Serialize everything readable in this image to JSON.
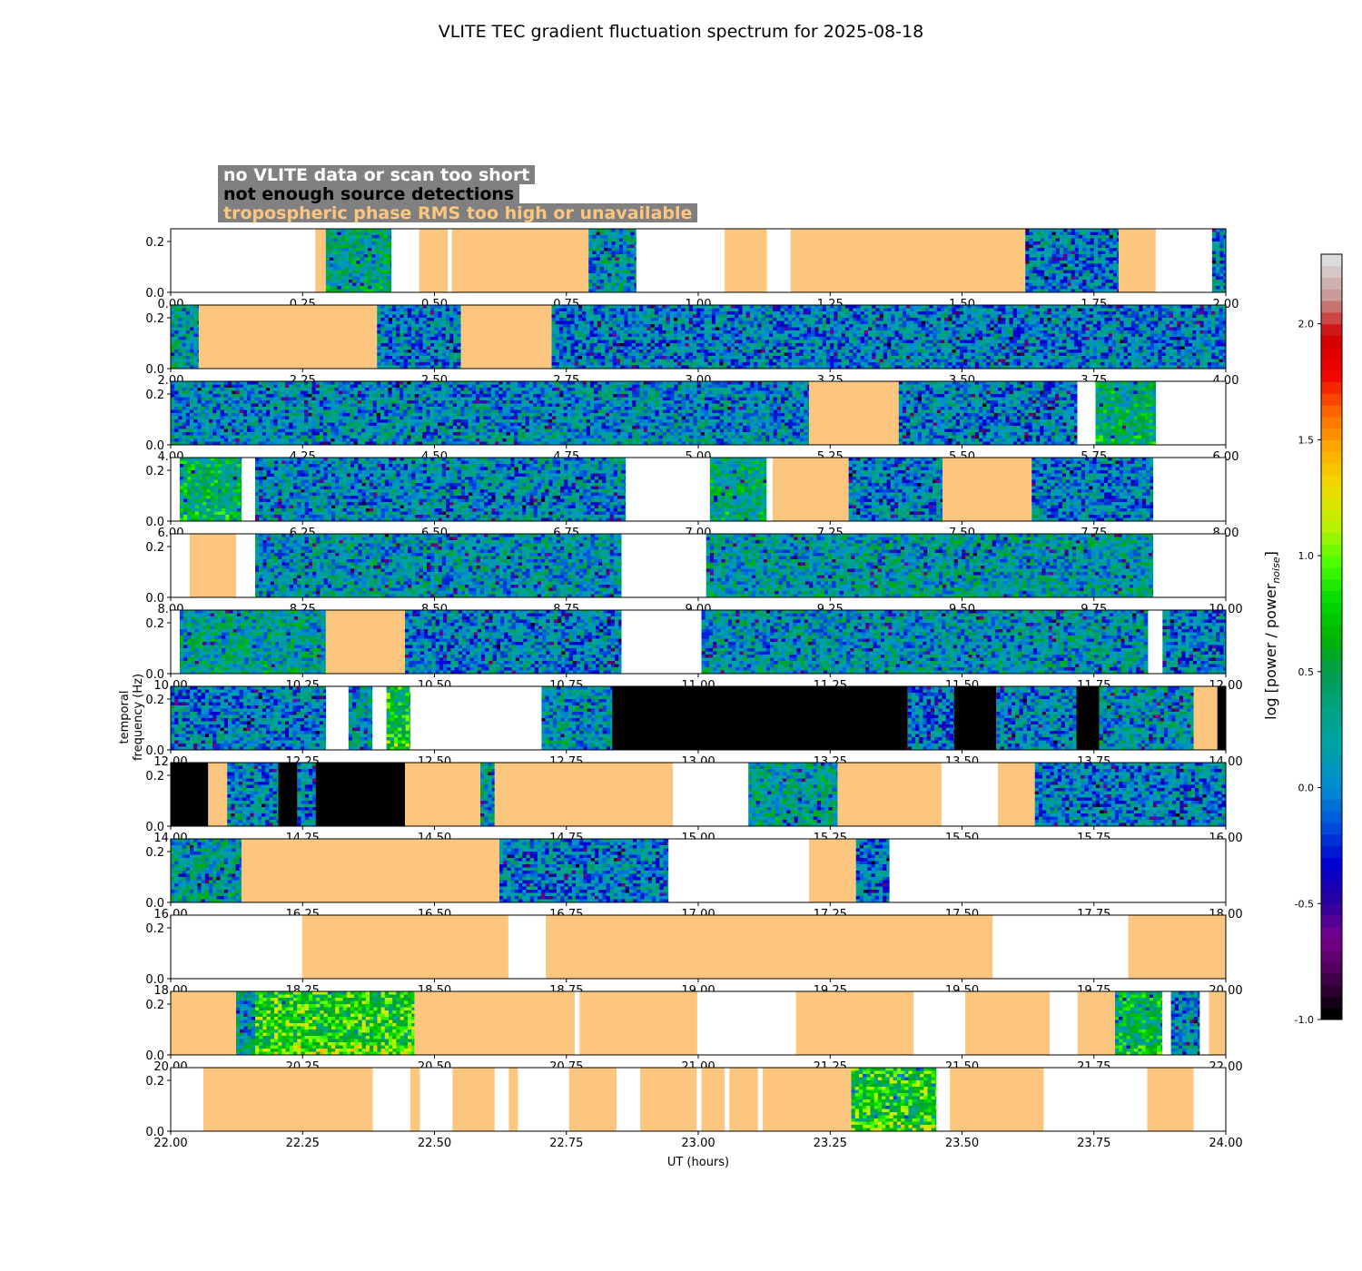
{
  "figure": {
    "title": "VLITE TEC gradient fluctuation spectrum for 2025-08-18"
  },
  "legend": [
    {
      "label": "no VLITE data or scan too short",
      "text_color": "#ffffff",
      "fill": "#ffffff"
    },
    {
      "label": "not enough source detections",
      "text_color": "#000000",
      "fill": "#000000"
    },
    {
      "label": "tropospheric phase RMS too high or unavailable",
      "text_color": "#fdc67f",
      "fill": "#fdc67f"
    }
  ],
  "colorbar": {
    "label": "log [power / power",
    "label_subscript": "noise",
    "label_close": "]",
    "range": [
      -1.0,
      2.3
    ],
    "ticks": [
      "-1.0",
      "-0.5",
      "0.0",
      "0.5",
      "1.0",
      "1.5",
      "2.0"
    ],
    "tick_values": [
      -1.0,
      -0.5,
      0.0,
      0.5,
      1.0,
      1.5,
      2.0
    ],
    "colormap": "nipy_spectral-like"
  },
  "axes": {
    "xlabel": "UT (hours)",
    "ylabel": "temporal frequency (Hz)",
    "y_ticks": [
      "0.0",
      "0.2"
    ],
    "ylim": [
      0.0,
      0.25
    ]
  },
  "chart_data": {
    "type": "heatmap",
    "description_units": "time in UT hours; frequency in Hz; color = log power ratio",
    "panels": [
      {
        "xlim": [
          0,
          2
        ],
        "x_ticks": [
          "0.00",
          "0.25",
          "0.50",
          "0.75",
          "1.00",
          "1.25",
          "1.50",
          "1.75",
          "2.00"
        ],
        "segments": [
          {
            "start": 0.274,
            "end": 0.294,
            "state": "trop"
          },
          {
            "start": 0.294,
            "end": 0.418,
            "state": "data",
            "tone": 0.35
          },
          {
            "start": 0.471,
            "end": 0.525,
            "state": "trop"
          },
          {
            "start": 0.533,
            "end": 0.792,
            "state": "trop"
          },
          {
            "start": 0.792,
            "end": 0.882,
            "state": "data",
            "tone": 0.2
          },
          {
            "start": 1.05,
            "end": 1.13,
            "state": "trop"
          },
          {
            "start": 1.175,
            "end": 1.62,
            "state": "trop"
          },
          {
            "start": 1.62,
            "end": 1.797,
            "state": "data",
            "tone": 0.1
          },
          {
            "start": 1.797,
            "end": 1.867,
            "state": "trop"
          },
          {
            "start": 1.974,
            "end": 2.0,
            "state": "data",
            "tone": 0.1
          }
        ]
      },
      {
        "xlim": [
          2,
          4
        ],
        "x_ticks": [
          "2.00",
          "2.25",
          "2.50",
          "2.75",
          "3.00",
          "3.25",
          "3.50",
          "3.75",
          "4.00"
        ],
        "segments": [
          {
            "start": 2.0,
            "end": 2.053,
            "state": "data",
            "tone": 0.2
          },
          {
            "start": 2.053,
            "end": 2.391,
            "state": "trop"
          },
          {
            "start": 2.391,
            "end": 2.55,
            "state": "data",
            "tone": 0.1
          },
          {
            "start": 2.55,
            "end": 2.722,
            "state": "trop"
          },
          {
            "start": 2.722,
            "end": 4.0,
            "state": "data",
            "tone": 0.1
          }
        ]
      },
      {
        "xlim": [
          4,
          6
        ],
        "x_ticks": [
          "4.00",
          "4.25",
          "4.50",
          "4.75",
          "5.00",
          "5.25",
          "5.50",
          "5.75",
          "6.00"
        ],
        "segments": [
          {
            "start": 4.0,
            "end": 5.21,
            "state": "data",
            "tone": 0.15
          },
          {
            "start": 5.21,
            "end": 5.38,
            "state": "trop"
          },
          {
            "start": 5.38,
            "end": 5.718,
            "state": "data",
            "tone": 0.1
          },
          {
            "start": 5.753,
            "end": 5.867,
            "state": "data",
            "tone": 0.45
          }
        ]
      },
      {
        "xlim": [
          6,
          8
        ],
        "x_ticks": [
          "6.00",
          "6.25",
          "6.50",
          "6.75",
          "7.00",
          "7.25",
          "7.50",
          "7.75",
          "8.00"
        ],
        "segments": [
          {
            "start": 6.017,
            "end": 6.134,
            "state": "data",
            "tone": 0.5
          },
          {
            "start": 6.16,
            "end": 6.862,
            "state": "data",
            "tone": 0.15
          },
          {
            "start": 7.022,
            "end": 7.129,
            "state": "data",
            "tone": 0.4
          },
          {
            "start": 7.141,
            "end": 7.285,
            "state": "trop"
          },
          {
            "start": 7.285,
            "end": 7.463,
            "state": "data",
            "tone": 0.1
          },
          {
            "start": 7.463,
            "end": 7.632,
            "state": "trop"
          },
          {
            "start": 7.632,
            "end": 7.862,
            "state": "data",
            "tone": 0.1
          }
        ]
      },
      {
        "xlim": [
          8,
          10
        ],
        "x_ticks": [
          "8.00",
          "8.25",
          "8.50",
          "8.75",
          "9.00",
          "9.25",
          "9.50",
          "9.75",
          "10.00"
        ],
        "segments": [
          {
            "start": 8.036,
            "end": 8.124,
            "state": "trop"
          },
          {
            "start": 8.16,
            "end": 8.854,
            "state": "data",
            "tone": 0.2
          },
          {
            "start": 9.015,
            "end": 9.862,
            "state": "data",
            "tone": 0.25
          }
        ]
      },
      {
        "xlim": [
          10,
          12
        ],
        "x_ticks": [
          "10.00",
          "10.25",
          "10.50",
          "10.75",
          "11.00",
          "11.25",
          "11.50",
          "11.75",
          "12.00"
        ],
        "segments": [
          {
            "start": 10.017,
            "end": 10.294,
            "state": "data",
            "tone": 0.3
          },
          {
            "start": 10.294,
            "end": 10.444,
            "state": "trop"
          },
          {
            "start": 10.444,
            "end": 10.854,
            "state": "data",
            "tone": 0.1
          },
          {
            "start": 11.006,
            "end": 11.852,
            "state": "data",
            "tone": 0.2
          },
          {
            "start": 11.88,
            "end": 12.0,
            "state": "data",
            "tone": 0.1
          }
        ]
      },
      {
        "xlim": [
          12,
          14
        ],
        "x_ticks": [
          "12.00",
          "12.25",
          "12.50",
          "12.75",
          "13.00",
          "13.25",
          "13.50",
          "13.75",
          "14.00"
        ],
        "segments": [
          {
            "start": 12.0,
            "end": 12.294,
            "state": "data",
            "tone": 0.1
          },
          {
            "start": 12.337,
            "end": 12.382,
            "state": "data",
            "tone": 0.2
          },
          {
            "start": 12.409,
            "end": 12.454,
            "state": "data",
            "tone": 0.7
          },
          {
            "start": 12.703,
            "end": 12.837,
            "state": "data",
            "tone": 0.2
          },
          {
            "start": 12.837,
            "end": 13.397,
            "state": "detect"
          },
          {
            "start": 13.397,
            "end": 13.485,
            "state": "data",
            "tone": 0.05
          },
          {
            "start": 13.485,
            "end": 13.565,
            "state": "detect"
          },
          {
            "start": 13.565,
            "end": 13.717,
            "state": "data",
            "tone": 0.1
          },
          {
            "start": 13.717,
            "end": 13.76,
            "state": "detect"
          },
          {
            "start": 13.76,
            "end": 13.939,
            "state": "data",
            "tone": 0.2
          },
          {
            "start": 13.939,
            "end": 13.984,
            "state": "trop"
          },
          {
            "start": 13.984,
            "end": 14.0,
            "state": "detect"
          }
        ]
      },
      {
        "xlim": [
          14,
          16
        ],
        "x_ticks": [
          "14.00",
          "14.25",
          "14.50",
          "14.75",
          "15.00",
          "15.25",
          "15.50",
          "15.75",
          "16.00"
        ],
        "segments": [
          {
            "start": 14.0,
            "end": 14.071,
            "state": "detect"
          },
          {
            "start": 14.071,
            "end": 14.107,
            "state": "trop"
          },
          {
            "start": 14.107,
            "end": 14.204,
            "state": "data",
            "tone": 0.15
          },
          {
            "start": 14.204,
            "end": 14.24,
            "state": "detect"
          },
          {
            "start": 14.24,
            "end": 14.275,
            "state": "data",
            "tone": 0.1
          },
          {
            "start": 14.275,
            "end": 14.444,
            "state": "detect"
          },
          {
            "start": 14.444,
            "end": 14.587,
            "state": "trop"
          },
          {
            "start": 14.587,
            "end": 14.614,
            "state": "data",
            "tone": 0.2
          },
          {
            "start": 14.614,
            "end": 14.952,
            "state": "trop"
          },
          {
            "start": 15.095,
            "end": 15.264,
            "state": "data",
            "tone": 0.3
          },
          {
            "start": 15.264,
            "end": 15.461,
            "state": "trop"
          },
          {
            "start": 15.568,
            "end": 15.638,
            "state": "trop"
          },
          {
            "start": 15.638,
            "end": 16.0,
            "state": "data",
            "tone": 0.1
          }
        ]
      },
      {
        "xlim": [
          16,
          18
        ],
        "x_ticks": [
          "16.00",
          "16.25",
          "16.50",
          "16.75",
          "17.00",
          "17.25",
          "17.50",
          "17.75",
          "18.00"
        ],
        "segments": [
          {
            "start": 16.0,
            "end": 16.134,
            "state": "data",
            "tone": 0.25
          },
          {
            "start": 16.134,
            "end": 16.623,
            "state": "trop"
          },
          {
            "start": 16.623,
            "end": 16.943,
            "state": "data",
            "tone": 0.1
          },
          {
            "start": 17.21,
            "end": 17.299,
            "state": "trop"
          },
          {
            "start": 17.299,
            "end": 17.362,
            "state": "data",
            "tone": 0.05
          }
        ]
      },
      {
        "xlim": [
          18,
          20
        ],
        "x_ticks": [
          "18.00",
          "18.25",
          "18.50",
          "18.75",
          "19.00",
          "19.25",
          "19.50",
          "19.75",
          "20.00"
        ],
        "segments": [
          {
            "start": 18.249,
            "end": 18.64,
            "state": "trop"
          },
          {
            "start": 18.711,
            "end": 19.558,
            "state": "trop"
          },
          {
            "start": 19.815,
            "end": 20.0,
            "state": "trop"
          }
        ]
      },
      {
        "xlim": [
          20,
          22
        ],
        "x_ticks": [
          "20.00",
          "20.25",
          "20.50",
          "20.75",
          "21.00",
          "21.25",
          "21.50",
          "21.75",
          "22.00"
        ],
        "segments": [
          {
            "start": 20.0,
            "end": 20.124,
            "state": "trop"
          },
          {
            "start": 20.124,
            "end": 20.16,
            "state": "data",
            "tone": 0.2
          },
          {
            "start": 20.16,
            "end": 20.462,
            "state": "data",
            "tone": 0.85
          },
          {
            "start": 20.462,
            "end": 20.766,
            "state": "trop"
          },
          {
            "start": 20.775,
            "end": 20.998,
            "state": "trop"
          },
          {
            "start": 21.185,
            "end": 21.408,
            "state": "trop"
          },
          {
            "start": 21.506,
            "end": 21.666,
            "state": "trop"
          },
          {
            "start": 21.719,
            "end": 21.79,
            "state": "trop"
          },
          {
            "start": 21.79,
            "end": 21.879,
            "state": "data",
            "tone": 0.55
          },
          {
            "start": 21.896,
            "end": 21.95,
            "state": "data",
            "tone": 0.1
          },
          {
            "start": 21.968,
            "end": 22.0,
            "state": "trop"
          }
        ]
      },
      {
        "xlim": [
          22,
          24
        ],
        "x_ticks": [
          "22.00",
          "22.25",
          "22.50",
          "22.75",
          "23.00",
          "23.25",
          "23.50",
          "23.75",
          "24.00"
        ],
        "segments": [
          {
            "start": 22.062,
            "end": 22.383,
            "state": "trop"
          },
          {
            "start": 22.454,
            "end": 22.472,
            "state": "trop"
          },
          {
            "start": 22.534,
            "end": 22.614,
            "state": "trop"
          },
          {
            "start": 22.641,
            "end": 22.658,
            "state": "trop"
          },
          {
            "start": 22.755,
            "end": 22.845,
            "state": "trop"
          },
          {
            "start": 22.89,
            "end": 22.997,
            "state": "trop"
          },
          {
            "start": 23.006,
            "end": 23.05,
            "state": "trop"
          },
          {
            "start": 23.059,
            "end": 23.113,
            "state": "trop"
          },
          {
            "start": 23.122,
            "end": 23.29,
            "state": "trop"
          },
          {
            "start": 23.29,
            "end": 23.451,
            "state": "data",
            "tone": 0.8
          },
          {
            "start": 23.477,
            "end": 23.655,
            "state": "trop"
          },
          {
            "start": 23.851,
            "end": 23.939,
            "state": "trop"
          }
        ]
      }
    ]
  },
  "colors": {
    "trop": "#fdc67f",
    "detect": "#000000",
    "frame": "#000000"
  }
}
